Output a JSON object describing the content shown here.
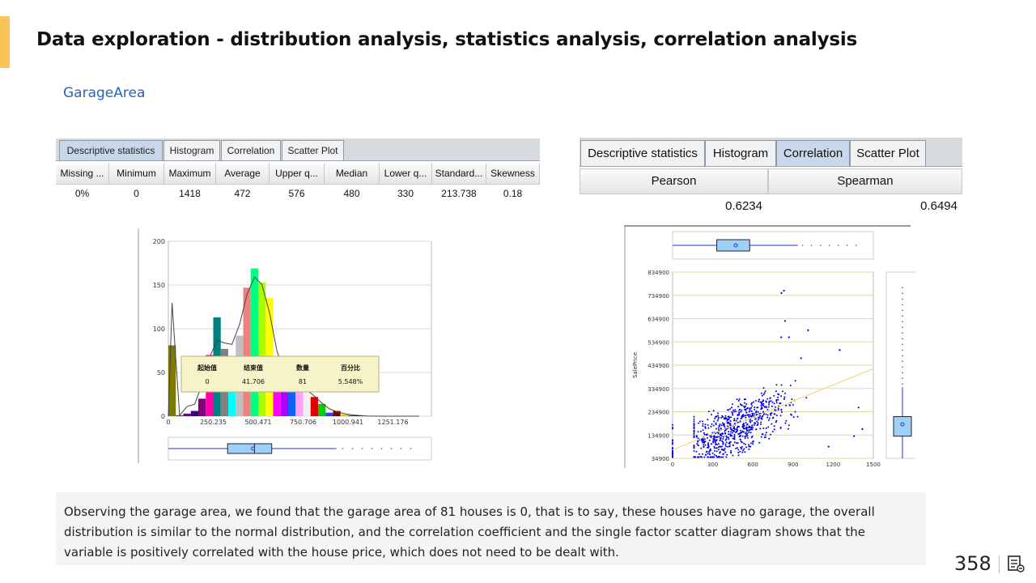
{
  "page": {
    "title": "Data exploration - distribution analysis, statistics analysis, correlation analysis",
    "subtitle": "GarageArea",
    "page_number": "358"
  },
  "left_panel": {
    "tabs": [
      "Descriptive statistics",
      "Histogram",
      "Correlation",
      "Scatter Plot"
    ],
    "active_tab": 0,
    "headers": [
      "Missing ...",
      "Minimum",
      "Maximum",
      "Average",
      "Upper q...",
      "Median",
      "Lower q...",
      "Standard...",
      "Skewness"
    ],
    "values": [
      "0%",
      "0",
      "1418",
      "472",
      "576",
      "480",
      "330",
      "213.738",
      "0.18"
    ]
  },
  "right_panel": {
    "tabs": [
      "Descriptive statistics",
      "Histogram",
      "Correlation",
      "Scatter Plot"
    ],
    "active_tab": 2,
    "headers": [
      "Pearson",
      "Spearman"
    ],
    "values": [
      "0.6234",
      "0.6494"
    ]
  },
  "chart_data": [
    {
      "type": "bar",
      "title": "",
      "xlabel": "",
      "ylabel": "",
      "ylim": [
        0,
        200
      ],
      "y_ticks": [
        "0",
        "50",
        "100",
        "150",
        "200"
      ],
      "x_ticks": [
        "0",
        "250.235",
        "500.471",
        "750.706",
        "1000.941",
        "1251.176"
      ],
      "bin_width": 41.706,
      "values": [
        81,
        1,
        3,
        6,
        20,
        70,
        113,
        77,
        50,
        92,
        147,
        169,
        153,
        135,
        40,
        47,
        30,
        32,
        33,
        22,
        14,
        4,
        6,
        2,
        1,
        1,
        0,
        0,
        0,
        0,
        0,
        0,
        0,
        0
      ],
      "colors": [
        "#7c7a00",
        "#a000a0",
        "#6a00b0",
        "#3a0088",
        "#800080",
        "#ff00aa",
        "#008080",
        "#808080",
        "#00ffff",
        "#c0c0c0",
        "#f08080",
        "#00ff80",
        "#a8ff00",
        "#ffff00",
        "#ff00ff",
        "#b000ff",
        "#1060ff",
        "#ffa0ff",
        "#f0f0f0",
        "#e00000",
        "#00d000",
        "#3040ff",
        "#800000",
        "#d0d000",
        "#a000a0",
        "#0000c0",
        "#ff0000",
        "#00a0a0",
        "#ff00ff",
        "#d0d000",
        "#00c000",
        "#0000ff",
        "#808000",
        "#008080"
      ],
      "tooltip": {
        "headers": [
          "起始值",
          "结束值",
          "数量",
          "百分比"
        ],
        "values": [
          "0",
          "41.706",
          "81",
          "5.548%"
        ]
      },
      "boxplot": {
        "min": 0,
        "q1": 330,
        "median": 480,
        "q3": 576,
        "mean": 472,
        "whisker_high": 936
      }
    },
    {
      "type": "scatter",
      "title": "",
      "xlabel": "",
      "ylabel": "SalePrice",
      "xlim": [
        0,
        1500
      ],
      "ylim": [
        34900,
        834900
      ],
      "x_ticks": [
        "0",
        "300",
        "600",
        "900",
        "1200",
        "1500"
      ],
      "y_ticks": [
        "34900",
        "134900",
        "234900",
        "334900",
        "434900",
        "534900",
        "634900",
        "734900",
        "834900"
      ],
      "trend_line": {
        "x": [
          0,
          1500
        ],
        "y": [
          71000,
          420000
        ]
      },
      "points_summary": {
        "count": 1460,
        "x_center": 480,
        "y_center": 180000
      },
      "outliers": [
        [
          1418,
          160000
        ],
        [
          1390,
          253000
        ],
        [
          1356,
          130000
        ],
        [
          1248,
          500000
        ],
        [
          1166,
          85000
        ],
        [
          832,
          755000
        ],
        [
          813,
          745000
        ],
        [
          840,
          625000
        ],
        [
          812,
          555000
        ],
        [
          870,
          555000
        ],
        [
          1013,
          585000
        ],
        [
          960,
          465000
        ],
        [
          834,
          290000
        ]
      ],
      "x_boxplot": {
        "min": 0,
        "q1": 330,
        "median": 480,
        "q3": 576,
        "mean": 472,
        "whisker_high": 936
      },
      "y_boxplot": {
        "min": 34900,
        "q1": 129975,
        "median": 163000,
        "q3": 214000,
        "mean": 180921,
        "whisker_high": 340000
      }
    }
  ],
  "footer": {
    "note": "Observing the garage area, we found that the garage area of 81 houses is 0, that is to say, these houses have no garage, the overall distribution is similar to the normal distribution, and the correlation coefficient and the single factor scatter diagram shows that the variable is positively correlated with the house price, which does not need to be dealt with."
  },
  "colors": {
    "accent": "#f9c45a",
    "subtitle": "#2a64b8",
    "scatter_point": "#0000ee",
    "trend": "#f5d77a",
    "box": "#9fd0f5"
  }
}
